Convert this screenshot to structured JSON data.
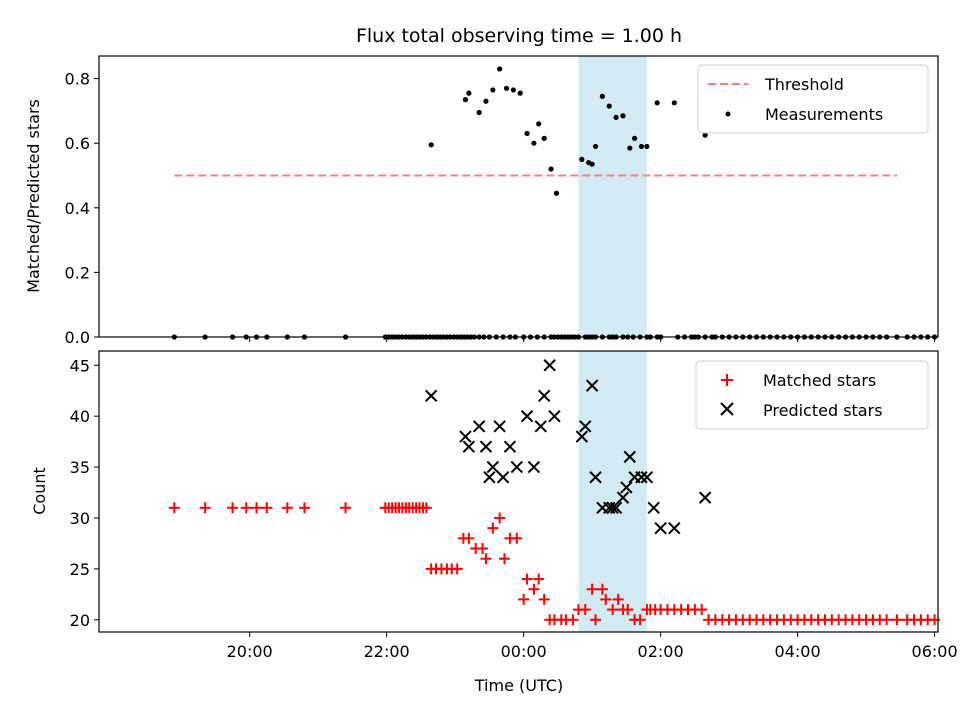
{
  "chart_data": [
    {
      "type": "scatter",
      "title": "Flux total observing time = 1.00 h",
      "xlabel": "",
      "ylabel": "Matched/Predicted stars",
      "xlim_hours": [
        17.8,
        30.05
      ],
      "ylim": [
        0,
        0.87
      ],
      "yticks": [
        0.0,
        0.2,
        0.4,
        0.6,
        0.8
      ],
      "ytick_labels": [
        "0.0",
        "0.2",
        "0.4",
        "0.6",
        "0.8"
      ],
      "highlight_span": {
        "start": 24.8,
        "end": 25.8,
        "color": "#add8e6"
      },
      "threshold": {
        "label": "Threshold",
        "value": 0.5,
        "x_range": [
          18.9,
          29.45
        ],
        "color": "#ff7f7f"
      },
      "legend": {
        "position": "top-right",
        "items": [
          "Threshold",
          "Measurements"
        ]
      },
      "series": [
        {
          "name": "Measurements",
          "color": "#000000",
          "x": [
            18.9,
            19.35,
            19.75,
            19.95,
            20.1,
            20.25,
            20.55,
            20.8,
            21.4,
            21.98,
            22.03,
            22.08,
            22.13,
            22.18,
            22.23,
            22.28,
            22.33,
            22.38,
            22.43,
            22.48,
            22.53,
            22.58,
            22.63,
            22.68,
            22.73,
            22.78,
            22.83,
            22.88,
            22.93,
            22.98,
            23.03,
            23.08,
            23.13,
            23.18,
            23.23,
            23.28,
            23.35,
            23.42,
            23.5,
            23.6,
            23.7,
            23.8,
            23.88,
            24.0,
            24.1,
            24.2,
            24.3,
            24.4,
            24.45,
            24.5,
            24.55,
            24.6,
            24.65,
            24.7,
            24.75,
            24.8,
            24.9,
            24.95,
            25.0,
            25.05,
            25.15,
            25.25,
            25.3,
            25.35,
            25.45,
            25.52,
            25.6,
            25.7,
            25.8,
            25.85,
            25.95,
            26.0,
            26.25,
            26.35,
            26.45,
            26.5,
            26.55,
            26.65,
            26.75,
            26.8,
            26.9,
            27.0,
            27.1,
            27.2,
            27.3,
            27.4,
            27.5,
            27.6,
            27.7,
            27.8,
            27.9,
            28.0,
            28.1,
            28.2,
            28.3,
            28.4,
            28.5,
            28.6,
            28.7,
            28.8,
            28.9,
            29.0,
            29.1,
            29.2,
            29.3,
            29.45,
            29.6,
            29.7,
            29.8,
            29.9,
            30.0
          ],
          "y": [
            0,
            0,
            0,
            0,
            0,
            0,
            0,
            0,
            0,
            0,
            0,
            0,
            0,
            0,
            0,
            0,
            0,
            0,
            0,
            0,
            0,
            0,
            0,
            0,
            0,
            0,
            0,
            0,
            0,
            0,
            0,
            0,
            0,
            0,
            0,
            0,
            0,
            0,
            0,
            0,
            0,
            0,
            0,
            0,
            0,
            0,
            0,
            0,
            0,
            0,
            0,
            0,
            0,
            0,
            0,
            0,
            0,
            0,
            0,
            0,
            0,
            0,
            0,
            0,
            0,
            0,
            0,
            0,
            0,
            0,
            0,
            0,
            0,
            0,
            0,
            0,
            0,
            0,
            0,
            0,
            0,
            0,
            0,
            0,
            0,
            0,
            0,
            0,
            0,
            0,
            0,
            0,
            0,
            0,
            0,
            0,
            0,
            0,
            0,
            0,
            0,
            0,
            0,
            0,
            0,
            0,
            0,
            0,
            0,
            0,
            0
          ]
        },
        {
          "name": "Measurements (nonzero)",
          "color": "#000000",
          "x": [
            22.65,
            23.15,
            23.2,
            23.35,
            23.45,
            23.55,
            23.65,
            23.75,
            23.85,
            23.95,
            24.05,
            24.15,
            24.22,
            24.3,
            24.4,
            24.48,
            24.85,
            24.95,
            25.0,
            25.05,
            25.15,
            25.25,
            25.35,
            25.45,
            25.55,
            25.62,
            25.72,
            25.8,
            25.95,
            26.2,
            26.65
          ],
          "y": [
            0.595,
            0.735,
            0.755,
            0.695,
            0.73,
            0.765,
            0.83,
            0.77,
            0.765,
            0.755,
            0.63,
            0.6,
            0.66,
            0.615,
            0.52,
            0.445,
            0.55,
            0.54,
            0.535,
            0.59,
            0.745,
            0.715,
            0.68,
            0.685,
            0.585,
            0.615,
            0.59,
            0.59,
            0.725,
            0.725,
            0.625
          ]
        }
      ]
    },
    {
      "type": "scatter",
      "title": "",
      "xlabel": "Time (UTC)",
      "ylabel": "Count",
      "xlim_hours": [
        17.8,
        30.05
      ],
      "ylim": [
        18.8,
        46.4
      ],
      "yticks": [
        20,
        25,
        30,
        35,
        40,
        45
      ],
      "ytick_labels": [
        "20",
        "25",
        "30",
        "35",
        "40",
        "45"
      ],
      "xticks_hours": [
        20,
        22,
        24,
        26,
        28,
        30
      ],
      "xtick_labels": [
        "20:00",
        "22:00",
        "00:00",
        "02:00",
        "04:00",
        "06:00"
      ],
      "highlight_span": {
        "start": 24.8,
        "end": 25.8,
        "color": "#add8e6"
      },
      "legend": {
        "position": "top-right",
        "items": [
          "Matched stars",
          "Predicted stars"
        ]
      },
      "series": [
        {
          "name": "Matched stars",
          "color": "#ff0000",
          "marker": "plus",
          "x": [
            18.9,
            19.35,
            19.75,
            19.95,
            20.1,
            20.25,
            20.55,
            20.8,
            21.4,
            21.98,
            22.03,
            22.08,
            22.13,
            22.18,
            22.23,
            22.28,
            22.33,
            22.38,
            22.43,
            22.48,
            22.53,
            22.58,
            22.65,
            22.72,
            22.8,
            22.88,
            22.95,
            23.03,
            23.12,
            23.2,
            23.3,
            23.4,
            23.45,
            23.55,
            23.65,
            23.72,
            23.8,
            23.9,
            24.0,
            24.05,
            24.15,
            24.22,
            24.3,
            24.38,
            24.45,
            24.55,
            24.62,
            24.72,
            24.8,
            24.9,
            25.0,
            25.05,
            25.15,
            25.2,
            25.3,
            25.38,
            25.45,
            25.52,
            25.62,
            25.7,
            25.8,
            25.85,
            25.92,
            26.0,
            26.1,
            26.2,
            26.3,
            26.4,
            26.5,
            26.6,
            26.7,
            26.8,
            26.9,
            27.0,
            27.1,
            27.2,
            27.3,
            27.4,
            27.5,
            27.6,
            27.7,
            27.8,
            27.9,
            28.0,
            28.1,
            28.2,
            28.3,
            28.4,
            28.5,
            28.6,
            28.7,
            28.8,
            28.9,
            29.0,
            29.1,
            29.2,
            29.3,
            29.45,
            29.6,
            29.7,
            29.8,
            29.9,
            30.0
          ],
          "y": [
            31,
            31,
            31,
            31,
            31,
            31,
            31,
            31,
            31,
            31,
            31,
            31,
            31,
            31,
            31,
            31,
            31,
            31,
            31,
            31,
            31,
            31,
            25,
            25,
            25,
            25,
            25,
            25,
            28,
            28,
            27,
            27,
            26,
            29,
            30,
            26,
            28,
            28,
            22,
            24,
            23,
            24,
            22,
            20,
            20,
            20,
            20,
            20,
            21,
            21,
            23,
            20,
            23,
            22,
            21,
            22,
            21,
            21,
            20,
            20,
            21,
            21,
            21,
            21,
            21,
            21,
            21,
            21,
            21,
            21,
            20,
            20,
            20,
            20,
            20,
            20,
            20,
            20,
            20,
            20,
            20,
            20,
            20,
            20,
            20,
            20,
            20,
            20,
            20,
            20,
            20,
            20,
            20,
            20,
            20,
            20,
            20,
            20,
            20,
            20,
            20,
            20,
            20
          ]
        },
        {
          "name": "Predicted stars",
          "color": "#000000",
          "marker": "x",
          "x": [
            22.65,
            23.15,
            23.2,
            23.35,
            23.45,
            23.5,
            23.55,
            23.65,
            23.7,
            23.8,
            23.9,
            24.05,
            24.15,
            24.25,
            24.3,
            24.38,
            24.45,
            24.85,
            24.9,
            25.0,
            25.05,
            25.15,
            25.25,
            25.3,
            25.35,
            25.45,
            25.5,
            25.55,
            25.62,
            25.72,
            25.8,
            25.9,
            26.0,
            26.2,
            26.65
          ],
          "y": [
            42,
            38,
            37,
            39,
            37,
            34,
            35,
            39,
            34,
            37,
            35,
            40,
            35,
            39,
            42,
            45,
            40,
            38,
            39,
            43,
            34,
            31,
            31,
            31,
            31,
            32,
            33,
            36,
            34,
            34,
            34,
            31,
            29,
            29,
            32
          ]
        }
      ]
    }
  ]
}
